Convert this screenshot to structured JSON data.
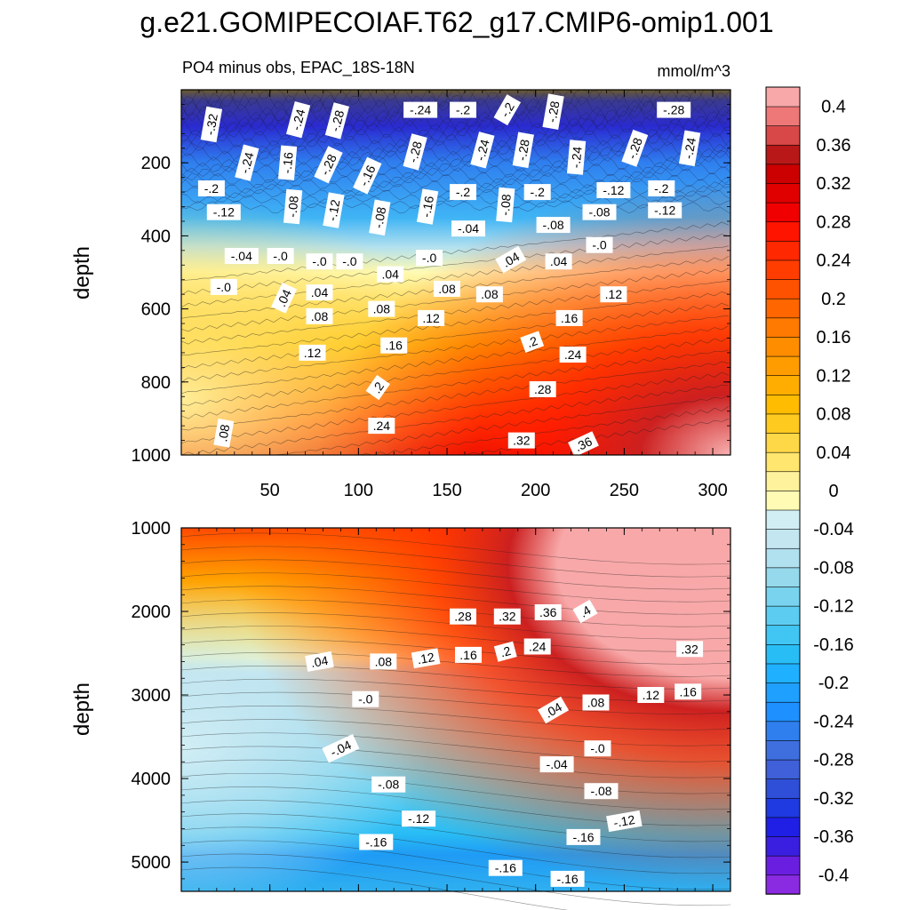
{
  "chart_data": {
    "type": "heatmap",
    "title": "g.e21.GOMIPECOIAF.T62_g17.CMIP6-omip1.001",
    "subtitle_left": "PO4 minus obs, EPAC_18S-18N",
    "units": "mmol/m^3",
    "x_range": [
      0,
      310
    ],
    "x_tick_labels": [
      "50",
      "100",
      "150",
      "200",
      "250",
      "300"
    ],
    "x_tick_values": [
      50,
      100,
      150,
      200,
      250,
      300
    ],
    "colorbar": {
      "levels": [
        -0.42,
        -0.4,
        -0.38,
        -0.36,
        -0.34,
        -0.32,
        -0.3,
        -0.28,
        -0.26,
        -0.24,
        -0.22,
        -0.2,
        -0.18,
        -0.16,
        -0.14,
        -0.12,
        -0.1,
        -0.08,
        -0.06,
        -0.04,
        -0.02,
        0,
        0.02,
        0.04,
        0.06,
        0.08,
        0.1,
        0.12,
        0.14,
        0.16,
        0.18,
        0.2,
        0.22,
        0.24,
        0.26,
        0.28,
        0.3,
        0.32,
        0.34,
        0.36,
        0.38,
        0.4,
        0.42
      ],
      "colors": [
        "#8a2be2",
        "#6a1fe0",
        "#3a1fe0",
        "#1f1fe6",
        "#1f3ae0",
        "#2f4fd8",
        "#3f60d8",
        "#3f6fdf",
        "#2f7fef",
        "#1f90ff",
        "#1fa0ff",
        "#1fb0ff",
        "#29bdf5",
        "#41c6f4",
        "#5ccdf0",
        "#79d3ee",
        "#96d8ec",
        "#b1e0ef",
        "#c3e6f1",
        "#d2eef5",
        "#fffbb4",
        "#fff29c",
        "#ffe66e",
        "#ffd848",
        "#ffca20",
        "#ffbc00",
        "#ffad00",
        "#ff9d00",
        "#ff8d00",
        "#ff7a00",
        "#ff6600",
        "#ff5200",
        "#ff3d00",
        "#ff2800",
        "#ff1400",
        "#f00000",
        "#e00000",
        "#cc0000",
        "#b81818",
        "#d84848",
        "#ee7878",
        "#f8a8a8"
      ],
      "tick_labels": [
        "0.4",
        "0.36",
        "0.32",
        "0.28",
        "0.24",
        "0.2",
        "0.16",
        "0.12",
        "0.08",
        "0.04",
        "0",
        "-0.04",
        "-0.08",
        "-0.12",
        "-0.16",
        "-0.2",
        "-0.24",
        "-0.28",
        "-0.32",
        "-0.36",
        "-0.4"
      ]
    },
    "panels": [
      {
        "name": "upper",
        "ylabel": "depth",
        "y_range": [
          0,
          1000
        ],
        "y_tick_labels": [
          "200",
          "400",
          "600",
          "800",
          "1000"
        ],
        "y_tick_values": [
          200,
          400,
          600,
          800,
          1000
        ],
        "contour_labels": [
          {
            "text": "-.32",
            "x": 17,
            "y": 95,
            "rot": -80
          },
          {
            "text": "-.24",
            "x": 66,
            "y": 82,
            "rot": -75
          },
          {
            "text": "-.28",
            "x": 88,
            "y": 85,
            "rot": -75
          },
          {
            "text": "-.24",
            "x": 135,
            "y": 55,
            "rot": 0
          },
          {
            "text": "-.2",
            "x": 159,
            "y": 55,
            "rot": 0
          },
          {
            "text": "-.2",
            "x": 184,
            "y": 55,
            "rot": -60
          },
          {
            "text": "-.28",
            "x": 210,
            "y": 60,
            "rot": -80
          },
          {
            "text": "-.28",
            "x": 278,
            "y": 55,
            "rot": 0
          },
          {
            "text": "-.24",
            "x": 37,
            "y": 200,
            "rot": -75
          },
          {
            "text": "-.16",
            "x": 60,
            "y": 200,
            "rot": -85
          },
          {
            "text": "-.28",
            "x": 83,
            "y": 205,
            "rot": -65
          },
          {
            "text": "-.16",
            "x": 105,
            "y": 235,
            "rot": -65
          },
          {
            "text": "-.28",
            "x": 132,
            "y": 170,
            "rot": -75
          },
          {
            "text": "-.24",
            "x": 170,
            "y": 165,
            "rot": -75
          },
          {
            "text": "-.28",
            "x": 193,
            "y": 165,
            "rot": -80
          },
          {
            "text": "-.24",
            "x": 223,
            "y": 185,
            "rot": -85
          },
          {
            "text": "-.28",
            "x": 256,
            "y": 160,
            "rot": -70
          },
          {
            "text": "-.24",
            "x": 287,
            "y": 160,
            "rot": -80
          },
          {
            "text": "-.2",
            "x": 17,
            "y": 270,
            "rot": 0
          },
          {
            "text": "-.12",
            "x": 24,
            "y": 335,
            "rot": 0
          },
          {
            "text": "-.08",
            "x": 63,
            "y": 320,
            "rot": -85
          },
          {
            "text": "-.12",
            "x": 86,
            "y": 330,
            "rot": -80
          },
          {
            "text": "-.08",
            "x": 112,
            "y": 350,
            "rot": -80
          },
          {
            "text": "-.16",
            "x": 139,
            "y": 320,
            "rot": -80
          },
          {
            "text": "-.2",
            "x": 159,
            "y": 280,
            "rot": 0
          },
          {
            "text": "-.08",
            "x": 183,
            "y": 315,
            "rot": -85
          },
          {
            "text": "-.2",
            "x": 201,
            "y": 280,
            "rot": 0
          },
          {
            "text": "-.12",
            "x": 244,
            "y": 275,
            "rot": 0
          },
          {
            "text": "-.2",
            "x": 271,
            "y": 270,
            "rot": 0
          },
          {
            "text": "-.12",
            "x": 273,
            "y": 330,
            "rot": 0
          },
          {
            "text": "-.08",
            "x": 236,
            "y": 335,
            "rot": 0
          },
          {
            "text": "-.08",
            "x": 210,
            "y": 370,
            "rot": 0
          },
          {
            "text": "-.04",
            "x": 162,
            "y": 380,
            "rot": 0
          },
          {
            "text": "-.0",
            "x": 236,
            "y": 425,
            "rot": 0
          },
          {
            "text": "-.04",
            "x": 34,
            "y": 455,
            "rot": 0
          },
          {
            "text": "-.0",
            "x": 56,
            "y": 455,
            "rot": 0
          },
          {
            "text": "-.0",
            "x": 78,
            "y": 470,
            "rot": 0
          },
          {
            "text": "-.0",
            "x": 95,
            "y": 470,
            "rot": 0
          },
          {
            "text": "-.0",
            "x": 140,
            "y": 460,
            "rot": 0
          },
          {
            "text": "-.0",
            "x": 24,
            "y": 540,
            "rot": 0
          },
          {
            "text": ".04",
            "x": 186,
            "y": 465,
            "rot": -30
          },
          {
            "text": ".04",
            "x": 213,
            "y": 470,
            "rot": 0
          },
          {
            "text": ".04",
            "x": 118,
            "y": 505,
            "rot": 0
          },
          {
            "text": ".04",
            "x": 78,
            "y": 555,
            "rot": 0
          },
          {
            "text": ".04",
            "x": 58,
            "y": 570,
            "rot": -65
          },
          {
            "text": ".08",
            "x": 150,
            "y": 545,
            "rot": 0
          },
          {
            "text": ".08",
            "x": 174,
            "y": 560,
            "rot": 0
          },
          {
            "text": ".12",
            "x": 244,
            "y": 560,
            "rot": 0
          },
          {
            "text": ".08",
            "x": 113,
            "y": 600,
            "rot": 0
          },
          {
            "text": ".08",
            "x": 78,
            "y": 620,
            "rot": 0
          },
          {
            "text": ".12",
            "x": 141,
            "y": 625,
            "rot": 0
          },
          {
            "text": ".16",
            "x": 219,
            "y": 625,
            "rot": 0
          },
          {
            "text": ".16",
            "x": 120,
            "y": 700,
            "rot": 0
          },
          {
            "text": ".12",
            "x": 74,
            "y": 720,
            "rot": 0
          },
          {
            "text": ".2",
            "x": 198,
            "y": 690,
            "rot": -20
          },
          {
            "text": ".24",
            "x": 221,
            "y": 725,
            "rot": 0
          },
          {
            "text": ".2",
            "x": 111,
            "y": 815,
            "rot": -55
          },
          {
            "text": ".28",
            "x": 204,
            "y": 820,
            "rot": 0
          },
          {
            "text": ".24",
            "x": 113,
            "y": 920,
            "rot": 0
          },
          {
            "text": ".08",
            "x": 24,
            "y": 940,
            "rot": -80
          },
          {
            "text": ".32",
            "x": 192,
            "y": 960,
            "rot": 0
          },
          {
            "text": ".36",
            "x": 227,
            "y": 970,
            "rot": -25
          }
        ]
      },
      {
        "name": "lower",
        "ylabel": "depth",
        "y_range": [
          1000,
          5350
        ],
        "y_tick_labels": [
          "1000",
          "2000",
          "3000",
          "4000",
          "5000"
        ],
        "y_tick_values": [
          1000,
          2000,
          3000,
          4000,
          5000
        ],
        "contour_labels": [
          {
            "text": ".28",
            "x": 159,
            "y": 2060,
            "rot": 0
          },
          {
            "text": ".32",
            "x": 184,
            "y": 2060,
            "rot": 0
          },
          {
            "text": ".36",
            "x": 207,
            "y": 2010,
            "rot": 0
          },
          {
            "text": ".4",
            "x": 228,
            "y": 2000,
            "rot": -30
          },
          {
            "text": ".24",
            "x": 201,
            "y": 2420,
            "rot": 0
          },
          {
            "text": ".2",
            "x": 183,
            "y": 2480,
            "rot": -15
          },
          {
            "text": ".16",
            "x": 162,
            "y": 2520,
            "rot": 0
          },
          {
            "text": ".12",
            "x": 138,
            "y": 2560,
            "rot": -10
          },
          {
            "text": ".08",
            "x": 114,
            "y": 2600,
            "rot": 0
          },
          {
            "text": ".04",
            "x": 78,
            "y": 2600,
            "rot": -10
          },
          {
            "text": ".32",
            "x": 287,
            "y": 2450,
            "rot": 0
          },
          {
            "text": ".12",
            "x": 265,
            "y": 3000,
            "rot": 0
          },
          {
            "text": ".16",
            "x": 286,
            "y": 2960,
            "rot": 0
          },
          {
            "text": ".08",
            "x": 234,
            "y": 3090,
            "rot": 0
          },
          {
            "text": ".04",
            "x": 210,
            "y": 3180,
            "rot": -30
          },
          {
            "text": "-.0",
            "x": 104,
            "y": 3050,
            "rot": 0
          },
          {
            "text": "-.0",
            "x": 235,
            "y": 3640,
            "rot": 0
          },
          {
            "text": "-.04",
            "x": 90,
            "y": 3640,
            "rot": -25
          },
          {
            "text": "-.04",
            "x": 212,
            "y": 3830,
            "rot": 0
          },
          {
            "text": "-.08",
            "x": 117,
            "y": 4070,
            "rot": 0
          },
          {
            "text": "-.08",
            "x": 237,
            "y": 4150,
            "rot": 0
          },
          {
            "text": "-.12",
            "x": 134,
            "y": 4480,
            "rot": 0
          },
          {
            "text": "-.12",
            "x": 250,
            "y": 4510,
            "rot": -10
          },
          {
            "text": "-.16",
            "x": 110,
            "y": 4760,
            "rot": 0
          },
          {
            "text": "-.16",
            "x": 227,
            "y": 4700,
            "rot": 0
          },
          {
            "text": "-.16",
            "x": 183,
            "y": 5070,
            "rot": 0
          },
          {
            "text": "-.16",
            "x": 218,
            "y": 5200,
            "rot": 0
          }
        ]
      }
    ]
  }
}
